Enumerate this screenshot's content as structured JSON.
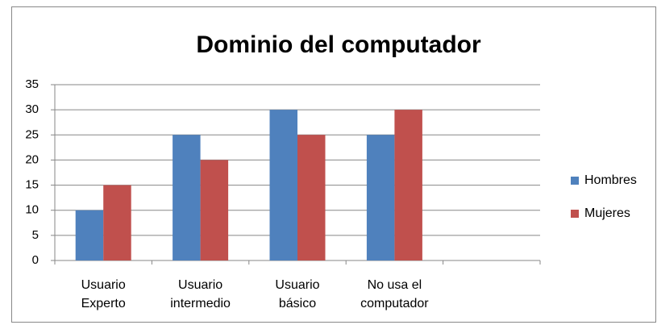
{
  "chart_data": {
    "type": "bar",
    "title": "Dominio del computador",
    "categories": [
      "Usuario Experto",
      "Usuario intermedio",
      "Usuario básico",
      "No usa el computador",
      null
    ],
    "series": [
      {
        "name": "Hombres",
        "color": "#4f81bd",
        "values": [
          10,
          25,
          30,
          25,
          null
        ]
      },
      {
        "name": "Mujeres",
        "color": "#c0504d",
        "values": [
          15,
          20,
          25,
          30,
          null
        ]
      }
    ],
    "ylim": [
      0,
      35
    ],
    "yticks": [
      0,
      5,
      10,
      15,
      20,
      25,
      30,
      35
    ],
    "grid": true,
    "legend": "right"
  }
}
